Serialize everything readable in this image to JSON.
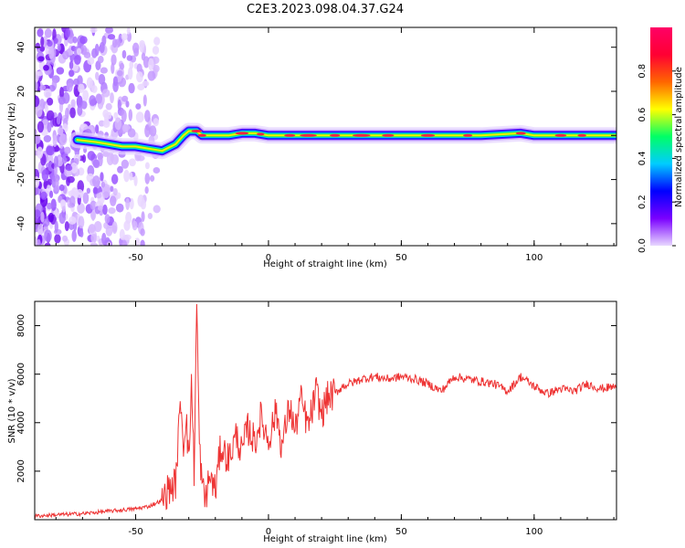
{
  "title": "C2E3.2023.098.04.37.G24",
  "chart_data": [
    {
      "type": "heatmap",
      "xlabel": "Height of straight line (km)",
      "ylabel": "Frequency (Hz)",
      "xlim": [
        -88,
        131
      ],
      "ylim": [
        -50,
        49
      ],
      "x_ticks": [
        -50,
        0,
        50,
        100
      ],
      "y_ticks": [
        -40,
        -20,
        0,
        20,
        40
      ],
      "colorbar": {
        "label": "Normalized spectral amplitude",
        "range": [
          0,
          1
        ],
        "ticks": [
          "0.0",
          "0.2",
          "0.4",
          "0.6",
          "0.8"
        ],
        "colormap": [
          "#e8d8ff",
          "#7a00ff",
          "#0000ff",
          "#00ccff",
          "#00ff66",
          "#ffff00",
          "#ff6600",
          "#ff0033",
          "#ff0066"
        ]
      },
      "ridge": {
        "x": [
          -72,
          -65,
          -60,
          -55,
          -50,
          -45,
          -40,
          -35,
          -32,
          -30,
          -27,
          -25,
          -20,
          -15,
          -10,
          -5,
          0,
          10,
          20,
          40,
          60,
          80,
          95,
          100,
          110,
          131
        ],
        "y": [
          -2,
          -3,
          -4,
          -5,
          -5,
          -6,
          -7,
          -4,
          0,
          2,
          2,
          0,
          0,
          0,
          1,
          1,
          0,
          0,
          0,
          0,
          0,
          0,
          1,
          0,
          0,
          0
        ]
      }
    },
    {
      "type": "line",
      "xlabel": "Height of straight line (km)",
      "ylabel": "SNR (10 * v/v)",
      "xlim": [
        -88,
        131
      ],
      "ylim": [
        0,
        9000
      ],
      "x_ticks": [
        -50,
        0,
        50,
        100
      ],
      "y_ticks": [
        2000,
        4000,
        6000,
        8000
      ],
      "color": "#ee3333",
      "series": [
        {
          "x": [
            -88,
            -80,
            -70,
            -60,
            -50,
            -45,
            -40,
            -38,
            -35,
            -33,
            -32,
            -31,
            -30,
            -29,
            -28,
            -27,
            -26,
            -25,
            -24,
            -22,
            -20,
            -18,
            -15,
            -12,
            -10,
            -8,
            -5,
            -3,
            0,
            3,
            5,
            8,
            10,
            12,
            15,
            18,
            20,
            22,
            25,
            28,
            30,
            33,
            35,
            40,
            45,
            50,
            55,
            60,
            65,
            70,
            75,
            80,
            85,
            90,
            95,
            100,
            105,
            110,
            115,
            120,
            125,
            131
          ],
          "y": [
            150,
            200,
            250,
            350,
            450,
            550,
            800,
            1200,
            1500,
            5000,
            3000,
            4500,
            2200,
            5800,
            2000,
            8900,
            3000,
            1500,
            800,
            1800,
            1200,
            3000,
            2500,
            3500,
            2700,
            3800,
            3200,
            4200,
            3300,
            4500,
            3000,
            4700,
            3600,
            5000,
            3800,
            5300,
            4300,
            5000,
            5200,
            5500,
            5600,
            5700,
            5800,
            5900,
            5800,
            5900,
            5800,
            5600,
            5300,
            5900,
            5800,
            5700,
            5600,
            5300,
            5900,
            5500,
            5200,
            5400,
            5300,
            5600,
            5400,
            5500
          ]
        }
      ]
    }
  ]
}
